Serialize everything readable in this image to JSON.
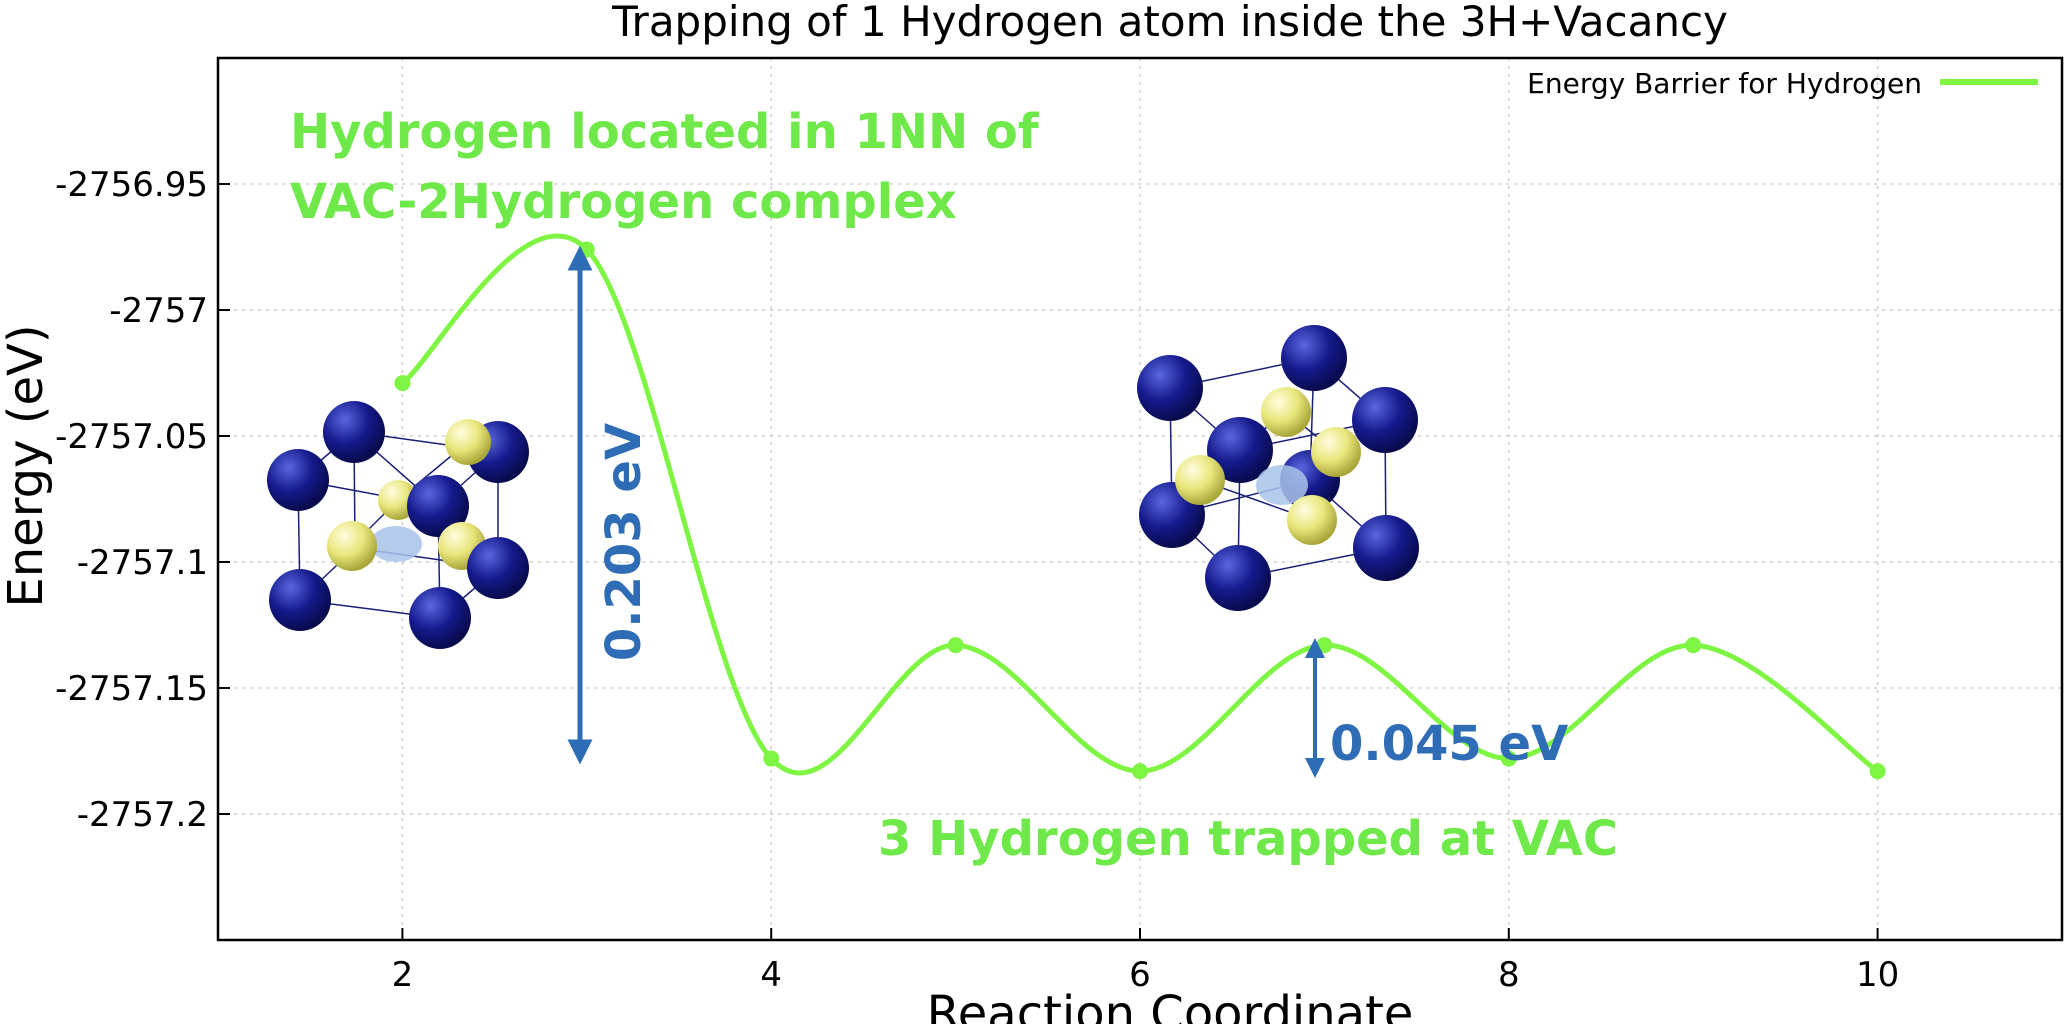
{
  "chart_data": {
    "type": "line",
    "title": "Trapping of 1 Hydrogen atom inside the 3H+Vacancy",
    "xlabel": "Reaction Coordinate",
    "ylabel": "Energy (eV)",
    "xlim": [
      1,
      11
    ],
    "ylim": [
      -2757.25,
      -2756.9
    ],
    "xticks": [
      2,
      4,
      6,
      8,
      10
    ],
    "yticks": [
      -2756.95,
      -2757,
      -2757.05,
      -2757.1,
      -2757.15,
      -2757.2
    ],
    "xtick_labels": [
      "2",
      "4",
      "6",
      "8",
      "10"
    ],
    "ytick_labels": [
      "-2756.95",
      "-2757",
      "-2757.05",
      "-2757.1",
      "-2757.15",
      "-2757.2"
    ],
    "grid": true,
    "legend_position": "top-right",
    "series": [
      {
        "name": "Energy Barrier for Hydrogen",
        "color": "#7ef542",
        "x": [
          2,
          3,
          4,
          5,
          6,
          7,
          8,
          9,
          10
        ],
        "y": [
          -2757.029,
          -2756.976,
          -2757.178,
          -2757.133,
          -2757.183,
          -2757.133,
          -2757.178,
          -2757.133,
          -2757.183
        ]
      }
    ]
  },
  "annotations": {
    "top_line1": "Hydrogen located in 1NN of",
    "top_line2": "VAC-2Hydrogen complex",
    "bottom": "3 Hydrogen trapped at VAC",
    "barrier_large": "0.203 eV",
    "barrier_small": "0.045 eV",
    "green_color": "#6fe84a",
    "blue_color": "#2e6db5",
    "atom_host_color": "#151a8c",
    "atom_hydrogen_color": "#e8e67a",
    "vacancy_color": "#a9c3ea"
  }
}
